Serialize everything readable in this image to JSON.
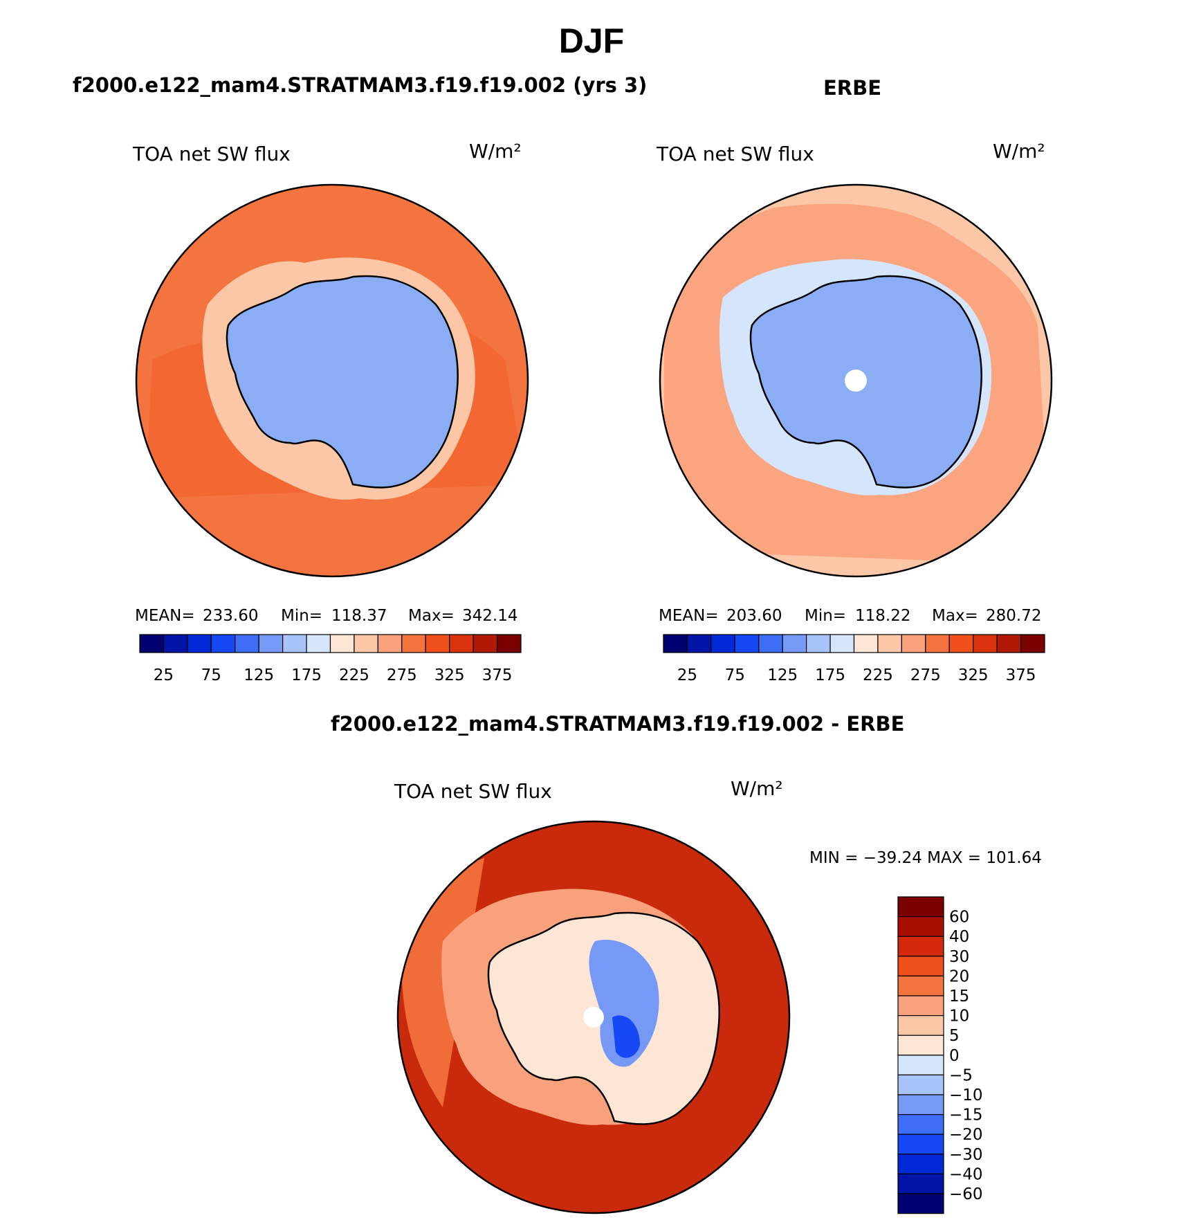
{
  "title": "DJF",
  "panels": [
    {
      "id": "model",
      "header": "f2000.e122_mam4.STRATMAM3.f19.f19.002 (yrs 3)",
      "variable": "TOA net SW flux",
      "units": "W/m²",
      "stats": {
        "mean_label": "MEAN=",
        "mean": "233.60",
        "min_label": "Min=",
        "min": "118.37",
        "max_label": "Max=",
        "max": "342.14"
      },
      "ocean_color": "#f4743f",
      "continent_color": "#8aadf5"
    },
    {
      "id": "obs",
      "header": "ERBE",
      "variable": "TOA net SW flux",
      "units": "W/m²",
      "stats": {
        "mean_label": "MEAN=",
        "mean": "203.60",
        "min_label": "Min=",
        "min": "118.22",
        "max_label": "Max=",
        "max": "280.72"
      },
      "ocean_color": "#fcc7a6",
      "continent_color": "#8aadf5"
    },
    {
      "id": "diff",
      "header": "f2000.e122_mam4.STRATMAM3.f19.f19.002 - ERBE",
      "variable": "TOA net SW flux",
      "units": "W/m²",
      "range_text": "MIN = −39.24 MAX = 101.64",
      "ocean_color": "#c92a0c",
      "continent_color": "#fde6d5"
    }
  ],
  "abs_colorbar": {
    "colors": [
      "#00006e",
      "#0015a8",
      "#0029d8",
      "#1648f5",
      "#3e6ef5",
      "#7599f5",
      "#a8c3f7",
      "#d5e5fb",
      "#fde6d5",
      "#fcc7a6",
      "#f9a07c",
      "#f4743f",
      "#f0511c",
      "#d8330c",
      "#b01a05",
      "#7b0000"
    ],
    "labels": [
      "25",
      "75",
      "125",
      "175",
      "225",
      "275",
      "325",
      "375"
    ]
  },
  "diff_colorbar": {
    "colors": [
      "#7b0000",
      "#a80f00",
      "#d3280a",
      "#f0511c",
      "#f4743f",
      "#f9a07c",
      "#fcc7a6",
      "#fde6d5",
      "#d5e5fb",
      "#a8c3f7",
      "#7599f5",
      "#3e6ef5",
      "#1648f5",
      "#0029d8",
      "#0015a8",
      "#00006e"
    ],
    "labels": [
      "60",
      "40",
      "30",
      "20",
      "15",
      "10",
      "5",
      "0",
      "−5",
      "−10",
      "−15",
      "−20",
      "−30",
      "−40",
      "−60"
    ]
  }
}
